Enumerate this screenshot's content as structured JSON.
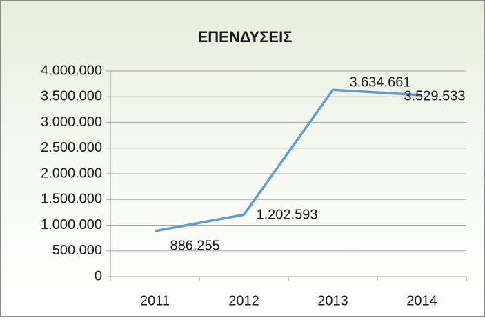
{
  "chart_data": {
    "type": "line",
    "title": "ΕΠΕΝΔΥΣΕΙΣ",
    "categories": [
      "2011",
      "2012",
      "2013",
      "2014"
    ],
    "series": [
      {
        "color": "#5f9bd6",
        "values": [
          886255,
          1202593,
          3634661,
          3529533
        ],
        "value_labels": [
          "886.255",
          "1.202.593",
          "3.634.661",
          "3.529.533"
        ]
      }
    ],
    "ylim": [
      0,
      4000000
    ],
    "yticks": [
      0,
      {
        "value": 500000,
        "label": "500.000"
      },
      {
        "value": 1000000,
        "label": "1.000.000"
      },
      {
        "value": 1500000,
        "label": "1.500.000"
      },
      {
        "value": 2000000,
        "label": "2.000.000"
      },
      {
        "value": 2500000,
        "label": "2.500.000"
      },
      {
        "value": 3000000,
        "label": "3.000.000"
      },
      {
        "value": 3500000,
        "label": "3.500.000"
      },
      {
        "value": 4000000,
        "label": "4.000.000"
      }
    ],
    "grid": true
  }
}
